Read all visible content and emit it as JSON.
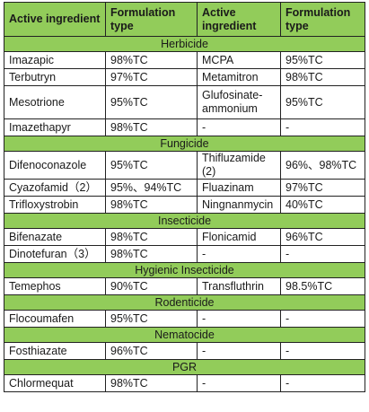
{
  "headers": [
    "Active ingredient",
    "Formulation type",
    "Active ingredient",
    "Formulation type"
  ],
  "sections": [
    {
      "category": "Herbicide",
      "rows": [
        [
          "Imazapic",
          "98%TC",
          "MCPA",
          "95%TC"
        ],
        [
          "Terbutryn",
          "97%TC",
          "Metamitron",
          "98%TC"
        ],
        [
          "Mesotrione",
          "95%TC",
          "Glufosinate-ammonium",
          "95%TC"
        ],
        [
          "Imazethapyr",
          "98%TC",
          "-",
          "-"
        ]
      ]
    },
    {
      "category": "Fungicide",
      "rows": [
        [
          "Difenoconazole",
          "95%TC",
          "Thifluzamide (2)",
          "96%、98%TC"
        ],
        [
          "Cyazofamid（2）",
          "95%、94%TC",
          "Fluazinam",
          "97%TC"
        ],
        [
          "Trifloxystrobin",
          "98%TC",
          "Ningnanmycin",
          "40%TC"
        ]
      ]
    },
    {
      "category": "Insecticide",
      "rows": [
        [
          "Bifenazate",
          "98%TC",
          "Flonicamid",
          "96%TC"
        ],
        [
          "Dinotefuran（3）",
          "98%TC",
          "-",
          "-"
        ]
      ]
    },
    {
      "category": "Hygienic Insecticide",
      "rows": [
        [
          "Temephos",
          "90%TC",
          "Transfluthrin",
          "98.5%TC"
        ]
      ]
    },
    {
      "category": "Rodenticide",
      "rows": [
        [
          "Flocoumafen",
          "95%TC",
          "-",
          "-"
        ]
      ]
    },
    {
      "category": "Nematocide",
      "rows": [
        [
          "Fosthiazate",
          "96%TC",
          "-",
          "-"
        ]
      ]
    },
    {
      "category": "PGR",
      "rows": [
        [
          "Chlormequat",
          "98%TC",
          "-",
          "-"
        ]
      ]
    }
  ],
  "colors": {
    "header_bg": "#92cc5a",
    "border": "#222222"
  }
}
